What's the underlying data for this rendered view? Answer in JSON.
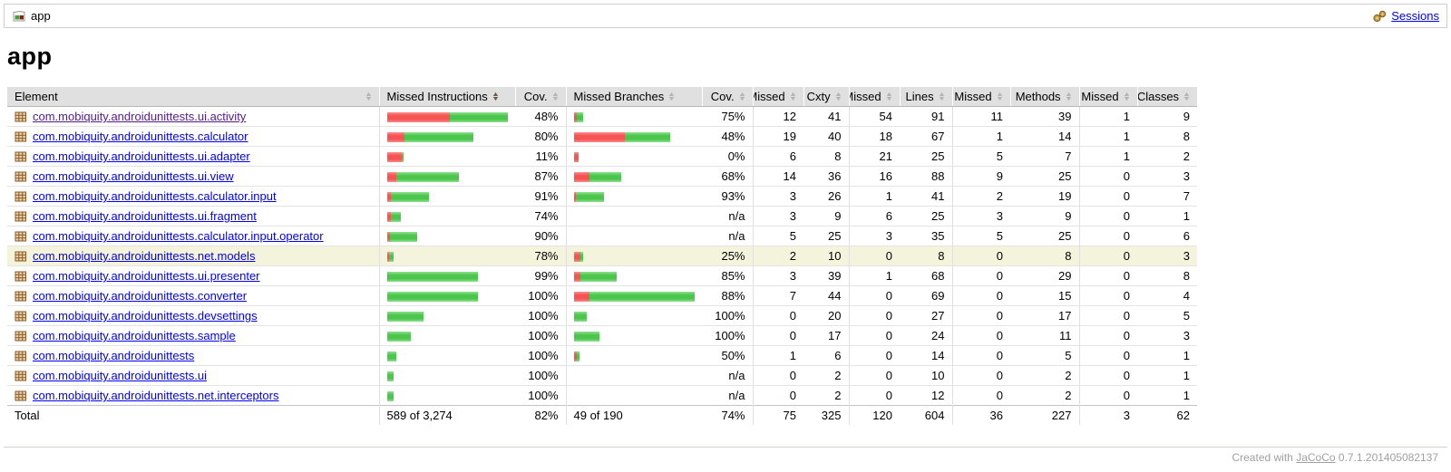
{
  "topbar": {
    "breadcrumb": "app",
    "sessions_label": "Sessions"
  },
  "heading": "app",
  "table": {
    "headers": [
      {
        "label": "Element",
        "type": "element",
        "sort": "inactive"
      },
      {
        "label": "Missed Instructions",
        "type": "bar",
        "sort": "active"
      },
      {
        "label": "Cov.",
        "type": "cov",
        "sort": "inactive"
      },
      {
        "label": "Missed Branches",
        "type": "bar",
        "sort": "inactive"
      },
      {
        "label": "Cov.",
        "type": "cov",
        "sort": "inactive"
      },
      {
        "label": "Missed",
        "type": "ctr1",
        "sort": "inactive"
      },
      {
        "label": "Cxty",
        "type": "ctr2",
        "sort": "inactive"
      },
      {
        "label": "Missed",
        "type": "ctr1",
        "sort": "inactive"
      },
      {
        "label": "Lines",
        "type": "ctr2",
        "sort": "inactive"
      },
      {
        "label": "Missed",
        "type": "ctr1",
        "sort": "inactive"
      },
      {
        "label": "Methods",
        "type": "ctr2",
        "sort": "inactive"
      },
      {
        "label": "Missed",
        "type": "ctr1",
        "sort": "inactive"
      },
      {
        "label": "Classes",
        "type": "ctr2",
        "sort": "inactive"
      }
    ],
    "rows": [
      {
        "element": "com.mobiquity.androidunittests.ui.activity",
        "visited": true,
        "highlighted": false,
        "instructions": {
          "red": 70,
          "green": 64,
          "cov": "48%"
        },
        "branches": {
          "red": 3,
          "green": 7,
          "cov": "75%"
        },
        "missed_cxty": "12",
        "cxty": "41",
        "missed_lines": "54",
        "lines": "91",
        "missed_methods": "11",
        "methods": "39",
        "missed_classes": "1",
        "classes": "9"
      },
      {
        "element": "com.mobiquity.androidunittests.calculator",
        "visited": false,
        "highlighted": false,
        "instructions": {
          "red": 19,
          "green": 76,
          "cov": "80%"
        },
        "branches": {
          "red": 56,
          "green": 50,
          "cov": "48%"
        },
        "missed_cxty": "19",
        "cxty": "40",
        "missed_lines": "18",
        "lines": "67",
        "missed_methods": "1",
        "methods": "14",
        "missed_classes": "1",
        "classes": "8"
      },
      {
        "element": "com.mobiquity.androidunittests.ui.adapter",
        "visited": false,
        "highlighted": false,
        "instructions": {
          "red": 16,
          "green": 2,
          "cov": "11%"
        },
        "branches": {
          "red": 5,
          "green": 0,
          "cov": "0%"
        },
        "missed_cxty": "6",
        "cxty": "8",
        "missed_lines": "21",
        "lines": "25",
        "missed_methods": "5",
        "methods": "7",
        "missed_classes": "1",
        "classes": "2"
      },
      {
        "element": "com.mobiquity.androidunittests.ui.view",
        "visited": false,
        "highlighted": false,
        "instructions": {
          "red": 10,
          "green": 69,
          "cov": "87%"
        },
        "branches": {
          "red": 17,
          "green": 35,
          "cov": "68%"
        },
        "missed_cxty": "14",
        "cxty": "36",
        "missed_lines": "16",
        "lines": "88",
        "missed_methods": "9",
        "methods": "25",
        "missed_classes": "0",
        "classes": "3"
      },
      {
        "element": "com.mobiquity.androidunittests.calculator.input",
        "visited": false,
        "highlighted": false,
        "instructions": {
          "red": 4,
          "green": 42,
          "cov": "91%"
        },
        "branches": {
          "red": 2,
          "green": 31,
          "cov": "93%"
        },
        "missed_cxty": "3",
        "cxty": "26",
        "missed_lines": "1",
        "lines": "41",
        "missed_methods": "2",
        "methods": "19",
        "missed_classes": "0",
        "classes": "7"
      },
      {
        "element": "com.mobiquity.androidunittests.ui.fragment",
        "visited": false,
        "highlighted": false,
        "instructions": {
          "red": 4,
          "green": 11,
          "cov": "74%"
        },
        "branches": {
          "red": 0,
          "green": 0,
          "cov": "n/a"
        },
        "missed_cxty": "3",
        "cxty": "9",
        "missed_lines": "6",
        "lines": "25",
        "missed_methods": "3",
        "methods": "9",
        "missed_classes": "0",
        "classes": "1"
      },
      {
        "element": "com.mobiquity.androidunittests.calculator.input.operator",
        "visited": false,
        "highlighted": false,
        "instructions": {
          "red": 3,
          "green": 30,
          "cov": "90%"
        },
        "branches": {
          "red": 0,
          "green": 0,
          "cov": "n/a"
        },
        "missed_cxty": "5",
        "cxty": "25",
        "missed_lines": "3",
        "lines": "35",
        "missed_methods": "5",
        "methods": "25",
        "missed_classes": "0",
        "classes": "6"
      },
      {
        "element": "com.mobiquity.androidunittests.net.models",
        "visited": false,
        "highlighted": true,
        "instructions": {
          "red": 2,
          "green": 5,
          "cov": "78%"
        },
        "branches": {
          "red": 7,
          "green": 3,
          "cov": "25%"
        },
        "missed_cxty": "2",
        "cxty": "10",
        "missed_lines": "0",
        "lines": "8",
        "missed_methods": "0",
        "methods": "8",
        "missed_classes": "0",
        "classes": "3"
      },
      {
        "element": "com.mobiquity.androidunittests.ui.presenter",
        "visited": false,
        "highlighted": false,
        "instructions": {
          "red": 1,
          "green": 99,
          "cov": "99%"
        },
        "branches": {
          "red": 7,
          "green": 40,
          "cov": "85%"
        },
        "missed_cxty": "3",
        "cxty": "39",
        "missed_lines": "1",
        "lines": "68",
        "missed_methods": "0",
        "methods": "29",
        "missed_classes": "0",
        "classes": "8"
      },
      {
        "element": "com.mobiquity.androidunittests.converter",
        "visited": false,
        "highlighted": false,
        "instructions": {
          "red": 0,
          "green": 100,
          "cov": "100%"
        },
        "branches": {
          "red": 17,
          "green": 116,
          "cov": "88%"
        },
        "missed_cxty": "7",
        "cxty": "44",
        "missed_lines": "0",
        "lines": "69",
        "missed_methods": "0",
        "methods": "15",
        "missed_classes": "0",
        "classes": "4"
      },
      {
        "element": "com.mobiquity.androidunittests.devsettings",
        "visited": false,
        "highlighted": false,
        "instructions": {
          "red": 0,
          "green": 40,
          "cov": "100%"
        },
        "branches": {
          "red": 0,
          "green": 14,
          "cov": "100%"
        },
        "missed_cxty": "0",
        "cxty": "20",
        "missed_lines": "0",
        "lines": "27",
        "missed_methods": "0",
        "methods": "17",
        "missed_classes": "0",
        "classes": "5"
      },
      {
        "element": "com.mobiquity.androidunittests.sample",
        "visited": false,
        "highlighted": false,
        "instructions": {
          "red": 0,
          "green": 26,
          "cov": "100%"
        },
        "branches": {
          "red": 0,
          "green": 28,
          "cov": "100%"
        },
        "missed_cxty": "0",
        "cxty": "17",
        "missed_lines": "0",
        "lines": "24",
        "missed_methods": "0",
        "methods": "11",
        "missed_classes": "0",
        "classes": "3"
      },
      {
        "element": "com.mobiquity.androidunittests",
        "visited": false,
        "highlighted": false,
        "instructions": {
          "red": 0,
          "green": 10,
          "cov": "100%"
        },
        "branches": {
          "red": 3,
          "green": 3,
          "cov": "50%"
        },
        "missed_cxty": "1",
        "cxty": "6",
        "missed_lines": "0",
        "lines": "14",
        "missed_methods": "0",
        "methods": "5",
        "missed_classes": "0",
        "classes": "1"
      },
      {
        "element": "com.mobiquity.androidunittests.ui",
        "visited": false,
        "highlighted": false,
        "instructions": {
          "red": 0,
          "green": 7,
          "cov": "100%"
        },
        "branches": {
          "red": 0,
          "green": 0,
          "cov": "n/a"
        },
        "missed_cxty": "0",
        "cxty": "2",
        "missed_lines": "0",
        "lines": "10",
        "missed_methods": "0",
        "methods": "2",
        "missed_classes": "0",
        "classes": "1"
      },
      {
        "element": "com.mobiquity.androidunittests.net.interceptors",
        "visited": false,
        "highlighted": false,
        "instructions": {
          "red": 0,
          "green": 7,
          "cov": "100%"
        },
        "branches": {
          "red": 0,
          "green": 0,
          "cov": "n/a"
        },
        "missed_cxty": "0",
        "cxty": "2",
        "missed_lines": "0",
        "lines": "12",
        "missed_methods": "0",
        "methods": "2",
        "missed_classes": "0",
        "classes": "1"
      }
    ],
    "total": {
      "label": "Total",
      "instructions": "589 of 3,274",
      "instructions_cov": "82%",
      "branches": "49 of 190",
      "branches_cov": "74%",
      "missed_cxty": "75",
      "cxty": "325",
      "missed_lines": "120",
      "lines": "604",
      "missed_methods": "36",
      "methods": "227",
      "missed_classes": "3",
      "classes": "62"
    }
  },
  "footer": {
    "created_with": "Created with",
    "tool": "JaCoCo",
    "version": "0.7.1.201405082137"
  },
  "colors": {
    "bar_red": "#f65353",
    "bar_green": "#4cc54c",
    "highlight": "#f4f4dc",
    "link": "#0000ee",
    "link_visited": "#551a8b",
    "header_bg": "#e0e0e0"
  }
}
